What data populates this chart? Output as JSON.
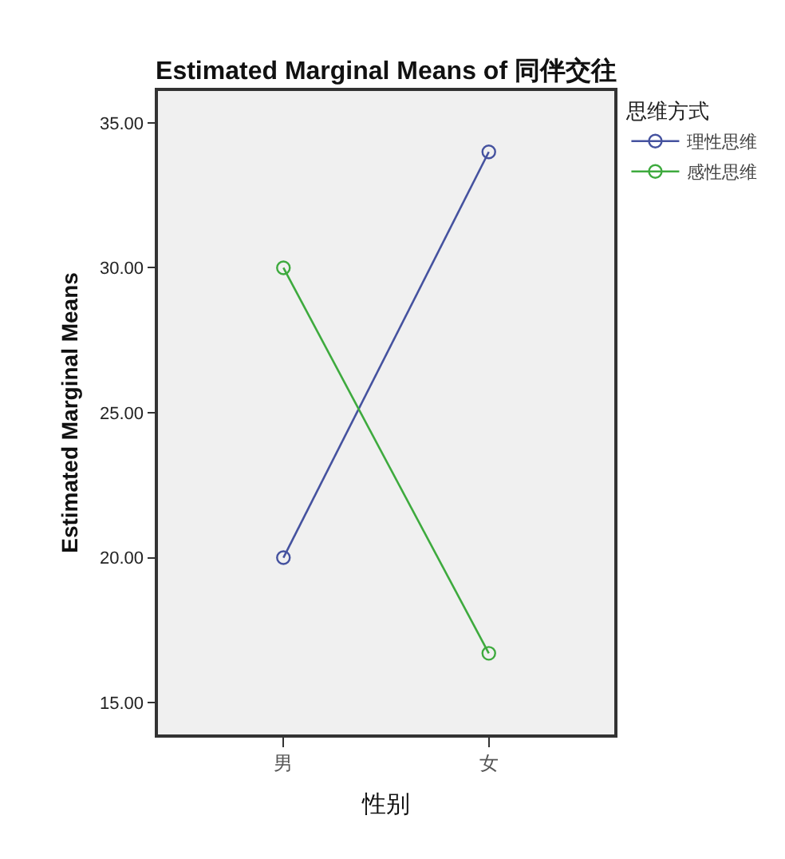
{
  "chart_data": {
    "type": "line",
    "title": "Estimated Marginal Means of 同伴交往",
    "xlabel": "性别",
    "ylabel": "Estimated Marginal Means",
    "legend_title": "思维方式",
    "categories": [
      "男",
      "女"
    ],
    "series": [
      {
        "name": "理性思维",
        "color": "#45529f",
        "values": [
          20.0,
          34.0
        ]
      },
      {
        "name": "感性思维",
        "color": "#3eaa3e",
        "values": [
          30.0,
          16.7
        ]
      }
    ],
    "ylim": [
      13.9,
      36.1
    ],
    "yticks": [
      {
        "value": 15,
        "label": "15.00"
      },
      {
        "value": 20,
        "label": "20.00"
      },
      {
        "value": 25,
        "label": "25.00"
      },
      {
        "value": 30,
        "label": "30.00"
      },
      {
        "value": 35,
        "label": "35.00"
      }
    ],
    "grid": false,
    "legend": "top right",
    "marker": "circle",
    "line_style": "solid"
  }
}
